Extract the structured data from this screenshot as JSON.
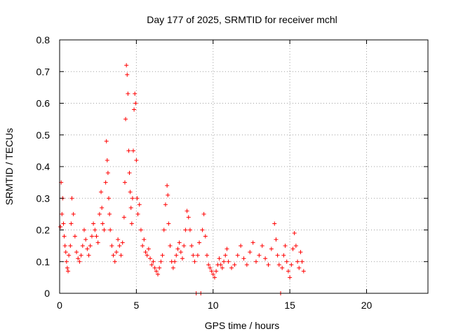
{
  "chart_data": {
    "type": "scatter",
    "title": "Day 177 of 2025, SRMTID for receiver mchl",
    "xlabel": "GPS time / hours",
    "ylabel": "SRMTID / TECUs",
    "xlim": [
      0,
      24
    ],
    "ylim": [
      0,
      0.8
    ],
    "x_ticks": [
      0,
      5,
      10,
      15,
      20
    ],
    "x_tick_labels": [
      "0",
      "5",
      "10",
      "15",
      "20"
    ],
    "y_ticks": [
      0,
      0.1,
      0.2,
      0.3,
      0.4,
      0.5,
      0.6,
      0.7,
      0.8
    ],
    "y_tick_labels": [
      "0",
      "0.1",
      "0.2",
      "0.3",
      "0.4",
      "0.5",
      "0.6",
      "0.7",
      "0.8"
    ],
    "grid": true,
    "marker": "plus",
    "color": "#ff0000",
    "series": [
      {
        "name": "SRMTID",
        "points": [
          [
            0.05,
            0.21
          ],
          [
            0.1,
            0.35
          ],
          [
            0.15,
            0.25
          ],
          [
            0.2,
            0.3
          ],
          [
            0.25,
            0.22
          ],
          [
            0.3,
            0.18
          ],
          [
            0.35,
            0.15
          ],
          [
            0.4,
            0.13
          ],
          [
            0.45,
            0.1
          ],
          [
            0.5,
            0.08
          ],
          [
            0.55,
            0.07
          ],
          [
            0.6,
            0.12
          ],
          [
            0.7,
            0.15
          ],
          [
            0.75,
            0.22
          ],
          [
            0.8,
            0.3
          ],
          [
            0.9,
            0.25
          ],
          [
            1.0,
            0.18
          ],
          [
            1.1,
            0.13
          ],
          [
            1.2,
            0.11
          ],
          [
            1.3,
            0.1
          ],
          [
            1.4,
            0.12
          ],
          [
            1.5,
            0.15
          ],
          [
            1.6,
            0.2
          ],
          [
            1.7,
            0.17
          ],
          [
            1.8,
            0.14
          ],
          [
            1.9,
            0.12
          ],
          [
            2.0,
            0.15
          ],
          [
            2.1,
            0.18
          ],
          [
            2.2,
            0.22
          ],
          [
            2.3,
            0.2
          ],
          [
            2.4,
            0.18
          ],
          [
            2.5,
            0.16
          ],
          [
            2.6,
            0.25
          ],
          [
            2.7,
            0.32
          ],
          [
            2.75,
            0.27
          ],
          [
            2.8,
            0.22
          ],
          [
            2.9,
            0.2
          ],
          [
            3.0,
            0.35
          ],
          [
            3.05,
            0.48
          ],
          [
            3.1,
            0.42
          ],
          [
            3.15,
            0.38
          ],
          [
            3.2,
            0.3
          ],
          [
            3.25,
            0.25
          ],
          [
            3.3,
            0.2
          ],
          [
            3.4,
            0.15
          ],
          [
            3.5,
            0.12
          ],
          [
            3.6,
            0.1
          ],
          [
            3.7,
            0.13
          ],
          [
            3.8,
            0.17
          ],
          [
            3.9,
            0.15
          ],
          [
            4.0,
            0.12
          ],
          [
            4.1,
            0.16
          ],
          [
            4.2,
            0.24
          ],
          [
            4.25,
            0.35
          ],
          [
            4.3,
            0.55
          ],
          [
            4.35,
            0.72
          ],
          [
            4.4,
            0.69
          ],
          [
            4.45,
            0.63
          ],
          [
            4.5,
            0.45
          ],
          [
            4.55,
            0.38
          ],
          [
            4.6,
            0.32
          ],
          [
            4.65,
            0.27
          ],
          [
            4.7,
            0.22
          ],
          [
            4.75,
            0.3
          ],
          [
            4.8,
            0.45
          ],
          [
            4.85,
            0.58
          ],
          [
            4.9,
            0.63
          ],
          [
            4.95,
            0.6
          ],
          [
            5.0,
            0.42
          ],
          [
            5.05,
            0.3
          ],
          [
            5.1,
            0.25
          ],
          [
            5.2,
            0.28
          ],
          [
            5.3,
            0.2
          ],
          [
            5.4,
            0.15
          ],
          [
            5.5,
            0.17
          ],
          [
            5.6,
            0.13
          ],
          [
            5.7,
            0.12
          ],
          [
            5.8,
            0.14
          ],
          [
            5.9,
            0.11
          ],
          [
            6.0,
            0.09
          ],
          [
            6.1,
            0.1
          ],
          [
            6.2,
            0.08
          ],
          [
            6.3,
            0.07
          ],
          [
            6.4,
            0.06
          ],
          [
            6.5,
            0.08
          ],
          [
            6.6,
            0.1
          ],
          [
            6.7,
            0.12
          ],
          [
            6.8,
            0.2
          ],
          [
            6.9,
            0.28
          ],
          [
            7.0,
            0.34
          ],
          [
            7.05,
            0.31
          ],
          [
            7.1,
            0.22
          ],
          [
            7.2,
            0.15
          ],
          [
            7.3,
            0.1
          ],
          [
            7.4,
            0.08
          ],
          [
            7.5,
            0.1
          ],
          [
            7.6,
            0.12
          ],
          [
            7.7,
            0.14
          ],
          [
            7.8,
            0.16
          ],
          [
            7.9,
            0.13
          ],
          [
            8.0,
            0.11
          ],
          [
            8.1,
            0.15
          ],
          [
            8.2,
            0.2
          ],
          [
            8.3,
            0.26
          ],
          [
            8.4,
            0.24
          ],
          [
            8.5,
            0.2
          ],
          [
            8.6,
            0.15
          ],
          [
            8.7,
            0.12
          ],
          [
            8.8,
            0.1
          ],
          [
            8.9,
            0.0
          ],
          [
            9.0,
            0.12
          ],
          [
            9.1,
            0.16
          ],
          [
            9.2,
            0.0
          ],
          [
            9.3,
            0.2
          ],
          [
            9.4,
            0.25
          ],
          [
            9.5,
            0.18
          ],
          [
            9.6,
            0.12
          ],
          [
            9.7,
            0.09
          ],
          [
            9.8,
            0.08
          ],
          [
            9.9,
            0.07
          ],
          [
            10.0,
            0.06
          ],
          [
            10.1,
            0.05
          ],
          [
            10.2,
            0.07
          ],
          [
            10.3,
            0.09
          ],
          [
            10.4,
            0.11
          ],
          [
            10.5,
            0.09
          ],
          [
            10.6,
            0.08
          ],
          [
            10.7,
            0.1
          ],
          [
            10.8,
            0.12
          ],
          [
            10.9,
            0.14
          ],
          [
            11.0,
            0.1
          ],
          [
            11.2,
            0.08
          ],
          [
            11.4,
            0.09
          ],
          [
            11.6,
            0.12
          ],
          [
            11.8,
            0.15
          ],
          [
            12.0,
            0.11
          ],
          [
            12.2,
            0.09
          ],
          [
            12.4,
            0.13
          ],
          [
            12.6,
            0.16
          ],
          [
            12.8,
            0.1
          ],
          [
            13.0,
            0.12
          ],
          [
            13.2,
            0.15
          ],
          [
            13.4,
            0.11
          ],
          [
            13.6,
            0.09
          ],
          [
            13.8,
            0.14
          ],
          [
            14.0,
            0.22
          ],
          [
            14.1,
            0.17
          ],
          [
            14.2,
            0.12
          ],
          [
            14.3,
            0.09
          ],
          [
            14.4,
            0.0
          ],
          [
            14.5,
            0.08
          ],
          [
            14.6,
            0.12
          ],
          [
            14.7,
            0.15
          ],
          [
            14.8,
            0.1
          ],
          [
            14.9,
            0.07
          ],
          [
            15.0,
            0.05
          ],
          [
            15.1,
            0.09
          ],
          [
            15.2,
            0.14
          ],
          [
            15.3,
            0.19
          ],
          [
            15.4,
            0.15
          ],
          [
            15.5,
            0.1
          ],
          [
            15.6,
            0.08
          ],
          [
            15.7,
            0.13
          ],
          [
            15.8,
            0.1
          ],
          [
            15.9,
            0.07
          ]
        ]
      }
    ]
  }
}
